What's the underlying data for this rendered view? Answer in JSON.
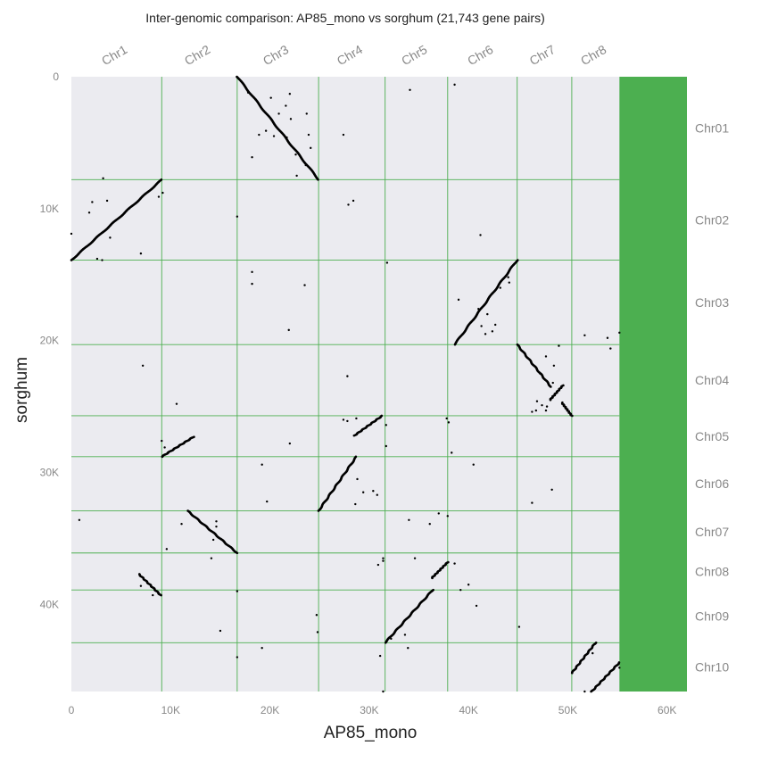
{
  "chart_data": {
    "type": "scatter",
    "title": "Inter-genomic comparison: AP85_mono vs sorghum (21,743 gene pairs)",
    "xlabel": "AP85_mono",
    "ylabel": "sorghum",
    "xlim": [
      0,
      62000
    ],
    "ylim": [
      0,
      46600
    ],
    "x_ticks": [
      {
        "value": 0,
        "label": "0"
      },
      {
        "value": 10000,
        "label": "10K"
      },
      {
        "value": 20000,
        "label": "20K"
      },
      {
        "value": 30000,
        "label": "30K"
      },
      {
        "value": 40000,
        "label": "40K"
      },
      {
        "value": 50000,
        "label": "50K"
      },
      {
        "value": 60000,
        "label": "60K"
      }
    ],
    "y_ticks": [
      {
        "value": 0,
        "label": "0"
      },
      {
        "value": 10000,
        "label": "10K"
      },
      {
        "value": 20000,
        "label": "20K"
      },
      {
        "value": 30000,
        "label": "30K"
      },
      {
        "value": 40000,
        "label": "40K"
      }
    ],
    "x_chromosomes": [
      {
        "name": "Chr1",
        "start": 0,
        "end": 9100
      },
      {
        "name": "Chr2",
        "start": 9100,
        "end": 16700
      },
      {
        "name": "Chr3",
        "start": 16700,
        "end": 24900
      },
      {
        "name": "Chr4",
        "start": 24900,
        "end": 31600
      },
      {
        "name": "Chr5",
        "start": 31600,
        "end": 37900
      },
      {
        "name": "Chr6",
        "start": 37900,
        "end": 44900
      },
      {
        "name": "Chr7",
        "start": 44900,
        "end": 50400
      },
      {
        "name": "Chr8",
        "start": 50400,
        "end": 55200
      }
    ],
    "y_chromosomes": [
      {
        "name": "Chr01",
        "start": 0,
        "end": 7800
      },
      {
        "name": "Chr02",
        "start": 7800,
        "end": 13900
      },
      {
        "name": "Chr03",
        "start": 13900,
        "end": 20300
      },
      {
        "name": "Chr04",
        "start": 20300,
        "end": 25700
      },
      {
        "name": "Chr05",
        "start": 25700,
        "end": 28800
      },
      {
        "name": "Chr06",
        "start": 28800,
        "end": 32900
      },
      {
        "name": "Chr07",
        "start": 32900,
        "end": 36100
      },
      {
        "name": "Chr08",
        "start": 36100,
        "end": 38900
      },
      {
        "name": "Chr09",
        "start": 38900,
        "end": 42900
      },
      {
        "name": "Chr10",
        "start": 42900,
        "end": 46600
      }
    ],
    "unaligned_region": {
      "x_start": 55200,
      "x_end": 62000,
      "color": "#4caf50"
    },
    "synteny_blocks": [
      {
        "x": [
          0,
          9100
        ],
        "y": [
          13900,
          7800
        ]
      },
      {
        "x": [
          16700,
          24900
        ],
        "y": [
          0,
          7800
        ]
      },
      {
        "x": [
          9100,
          12300
        ],
        "y": [
          28800,
          27300
        ]
      },
      {
        "x": [
          11700,
          16700
        ],
        "y": [
          32900,
          36100
        ]
      },
      {
        "x": [
          6800,
          9000
        ],
        "y": [
          37700,
          39300
        ]
      },
      {
        "x": [
          24900,
          28700
        ],
        "y": [
          32900,
          28800
        ]
      },
      {
        "x": [
          28500,
          31300
        ],
        "y": [
          27200,
          25700
        ]
      },
      {
        "x": [
          31600,
          36400
        ],
        "y": [
          42900,
          38900
        ]
      },
      {
        "x": [
          36300,
          37900
        ],
        "y": [
          38000,
          36800
        ]
      },
      {
        "x": [
          38600,
          44900
        ],
        "y": [
          20300,
          13900
        ]
      },
      {
        "x": [
          44900,
          48300
        ],
        "y": [
          20300,
          23500
        ]
      },
      {
        "x": [
          48200,
          49500
        ],
        "y": [
          24500,
          23400
        ]
      },
      {
        "x": [
          49400,
          50400
        ],
        "y": [
          24700,
          25700
        ]
      },
      {
        "x": [
          50400,
          52800
        ],
        "y": [
          45200,
          42900
        ]
      },
      {
        "x": [
          52400,
          55200
        ],
        "y": [
          46600,
          44400
        ]
      }
    ],
    "scattered_points": [
      [
        3200,
        7700
      ],
      [
        2100,
        9500
      ],
      [
        3600,
        9400
      ],
      [
        5800,
        10000
      ],
      [
        1800,
        10300
      ],
      [
        8800,
        9100
      ],
      [
        9200,
        8800
      ],
      [
        3900,
        12200
      ],
      [
        2600,
        13800
      ],
      [
        3100,
        13900
      ],
      [
        7000,
        13400
      ],
      [
        0,
        11900
      ],
      [
        22000,
        1300
      ],
      [
        17800,
        1200
      ],
      [
        20100,
        1600
      ],
      [
        21600,
        2200
      ],
      [
        20900,
        2800
      ],
      [
        22100,
        3200
      ],
      [
        23700,
        2800
      ],
      [
        19600,
        4100
      ],
      [
        18900,
        4400
      ],
      [
        20400,
        4500
      ],
      [
        21700,
        4600
      ],
      [
        23900,
        4400
      ],
      [
        24100,
        5400
      ],
      [
        22600,
        5900
      ],
      [
        18200,
        6100
      ],
      [
        22700,
        7500
      ],
      [
        23600,
        6700
      ],
      [
        34100,
        1000
      ],
      [
        38600,
        600
      ],
      [
        27400,
        4400
      ],
      [
        27900,
        9700
      ],
      [
        28400,
        9400
      ],
      [
        16700,
        10600
      ],
      [
        39000,
        16900
      ],
      [
        41200,
        12000
      ],
      [
        18200,
        14800
      ],
      [
        18200,
        15700
      ],
      [
        23500,
        15800
      ],
      [
        31800,
        14100
      ],
      [
        41000,
        17600
      ],
      [
        41900,
        18000
      ],
      [
        42700,
        18800
      ],
      [
        41300,
        18900
      ],
      [
        41700,
        19500
      ],
      [
        42400,
        19300
      ],
      [
        44000,
        15200
      ],
      [
        44100,
        15600
      ],
      [
        43200,
        16000
      ],
      [
        21900,
        19200
      ],
      [
        7200,
        21900
      ],
      [
        47800,
        21200
      ],
      [
        48600,
        21900
      ],
      [
        47200,
        22500
      ],
      [
        48500,
        23200
      ],
      [
        46900,
        24600
      ],
      [
        47400,
        24900
      ],
      [
        47800,
        25300
      ],
      [
        46400,
        25400
      ],
      [
        47900,
        25000
      ],
      [
        46800,
        25300
      ],
      [
        49100,
        20400
      ],
      [
        51700,
        19600
      ],
      [
        54000,
        19800
      ],
      [
        54300,
        20600
      ],
      [
        55200,
        19400
      ],
      [
        10600,
        24800
      ],
      [
        9100,
        27600
      ],
      [
        9400,
        28100
      ],
      [
        9700,
        28500
      ],
      [
        27800,
        22700
      ],
      [
        28700,
        25900
      ],
      [
        27400,
        26000
      ],
      [
        27800,
        26100
      ],
      [
        37800,
        25900
      ],
      [
        38000,
        26200
      ],
      [
        31700,
        26400
      ],
      [
        31700,
        28000
      ],
      [
        22000,
        27800
      ],
      [
        38300,
        28500
      ],
      [
        19200,
        29400
      ],
      [
        40500,
        29400
      ],
      [
        28800,
        30500
      ],
      [
        29400,
        31500
      ],
      [
        30400,
        31400
      ],
      [
        30800,
        31700
      ],
      [
        28600,
        32400
      ],
      [
        19700,
        32200
      ],
      [
        34000,
        33600
      ],
      [
        46400,
        32300
      ],
      [
        48400,
        31300
      ],
      [
        37000,
        33100
      ],
      [
        800,
        33600
      ],
      [
        11100,
        33900
      ],
      [
        14600,
        33700
      ],
      [
        14600,
        34100
      ],
      [
        14300,
        35100
      ],
      [
        14100,
        36500
      ],
      [
        9600,
        35800
      ],
      [
        36100,
        33900
      ],
      [
        37900,
        33300
      ],
      [
        30900,
        37000
      ],
      [
        31400,
        36700
      ],
      [
        31400,
        36500
      ],
      [
        34600,
        36500
      ],
      [
        38600,
        36900
      ],
      [
        40000,
        38500
      ],
      [
        39200,
        38900
      ],
      [
        7000,
        38600
      ],
      [
        8200,
        39300
      ],
      [
        16700,
        39000
      ],
      [
        45100,
        41700
      ],
      [
        40800,
        40100
      ],
      [
        24700,
        40800
      ],
      [
        24800,
        42100
      ],
      [
        33600,
        42300
      ],
      [
        15000,
        42000
      ],
      [
        19200,
        43300
      ],
      [
        16700,
        44000
      ],
      [
        31100,
        43900
      ],
      [
        32200,
        42600
      ],
      [
        33900,
        43300
      ],
      [
        31400,
        46600
      ],
      [
        52500,
        43700
      ],
      [
        55200,
        44800
      ],
      [
        51700,
        46600
      ]
    ]
  }
}
